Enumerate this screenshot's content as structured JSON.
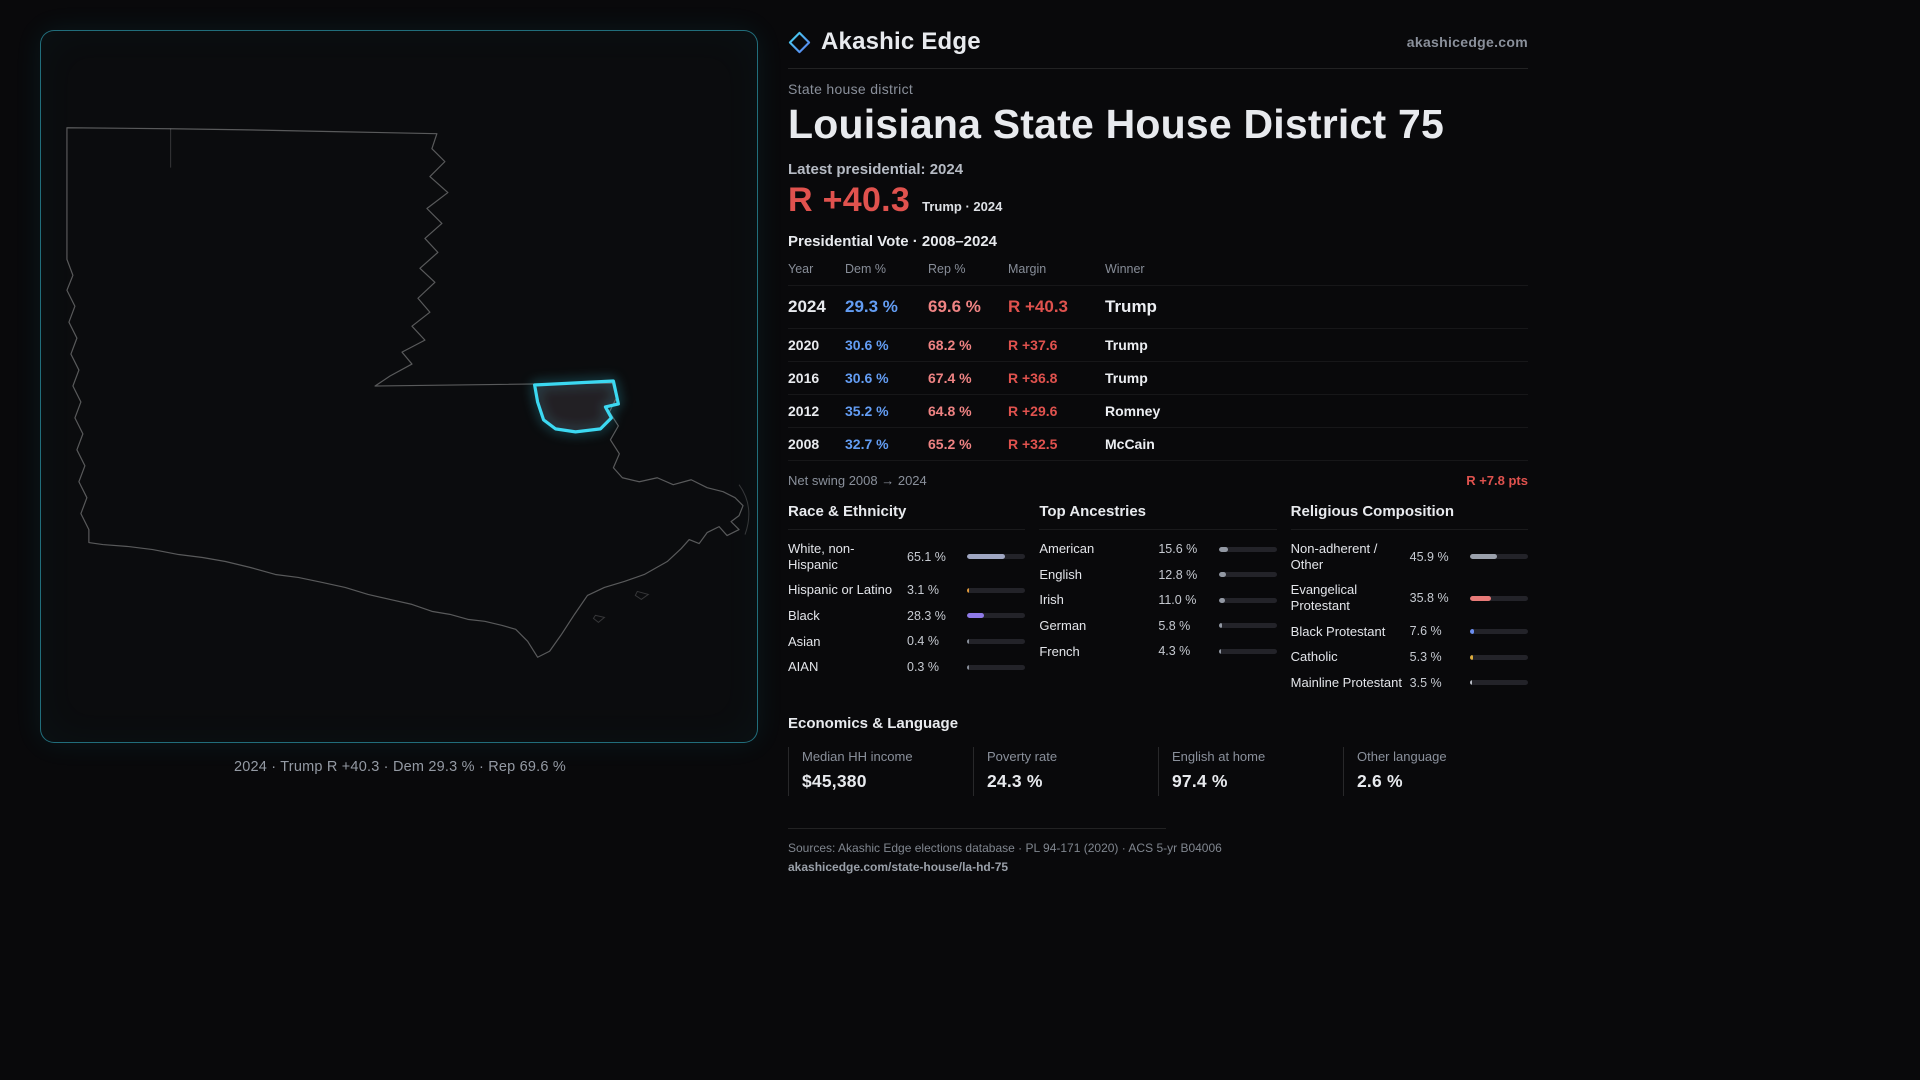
{
  "brand": {
    "name": "Akashic Edge",
    "domain": "akashicedge.com",
    "logo_icon": "diamond-icon",
    "accent_color": "#38d0ee"
  },
  "map": {
    "caption": "2024 · Trump R +40.3 · Dem 29.3 % · Rep 69.6 %",
    "district_color": "#3cd9f2"
  },
  "header": {
    "kicker": "State house district",
    "title": "Louisiana State House District 75",
    "latest_label": "Latest presidential: 2024",
    "margin_value": "R +40.3",
    "margin_context": "Trump · 2024",
    "margin_color": "#e0524e"
  },
  "vote_table": {
    "title": "Presidential Vote · 2008–2024",
    "columns": {
      "year": "Year",
      "dem": "Dem %",
      "rep": "Rep %",
      "margin": "Margin",
      "winner": "Winner"
    },
    "dem_color": "#639df4",
    "rep_color": "#ef8383",
    "rows": [
      {
        "year": "2024",
        "dem": "29.3 %",
        "rep": "69.6 %",
        "margin": "R +40.3",
        "winner": "Trump"
      },
      {
        "year": "2020",
        "dem": "30.6 %",
        "rep": "68.2 %",
        "margin": "R +37.6",
        "winner": "Trump"
      },
      {
        "year": "2016",
        "dem": "30.6 %",
        "rep": "67.4 %",
        "margin": "R +36.8",
        "winner": "Trump"
      },
      {
        "year": "2012",
        "dem": "35.2 %",
        "rep": "64.8 %",
        "margin": "R +29.6",
        "winner": "Romney"
      },
      {
        "year": "2008",
        "dem": "32.7 %",
        "rep": "65.2 %",
        "margin": "R +32.5",
        "winner": "McCain"
      }
    ],
    "net_swing_label": "Net swing 2008 → 2024",
    "net_swing_value": "R +7.8 pts"
  },
  "demographics": {
    "race": {
      "title": "Race & Ethnicity",
      "items": [
        {
          "label": "White, non-Hispanic",
          "value": "65.1 %",
          "pct": 65.1,
          "color": "#9fa6c2"
        },
        {
          "label": "Hispanic or Latino",
          "value": "3.1 %",
          "pct": 3.1,
          "color": "#e39b3b"
        },
        {
          "label": "Black",
          "value": "28.3 %",
          "pct": 28.3,
          "color": "#8f7ae8"
        },
        {
          "label": "Asian",
          "value": "0.4 %",
          "pct": 0.4,
          "color": "#8a909b"
        },
        {
          "label": "AIAN",
          "value": "0.3 %",
          "pct": 0.3,
          "color": "#8a909b"
        }
      ]
    },
    "ancestries": {
      "title": "Top Ancestries",
      "items": [
        {
          "label": "American",
          "value": "15.6 %",
          "pct": 15.6,
          "color": "#9298a3"
        },
        {
          "label": "English",
          "value": "12.8 %",
          "pct": 12.8,
          "color": "#9298a3"
        },
        {
          "label": "Irish",
          "value": "11.0 %",
          "pct": 11.0,
          "color": "#9298a3"
        },
        {
          "label": "German",
          "value": "5.8 %",
          "pct": 5.8,
          "color": "#9298a3"
        },
        {
          "label": "French",
          "value": "4.3 %",
          "pct": 4.3,
          "color": "#9298a3"
        }
      ]
    },
    "religion": {
      "title": "Religious Composition",
      "items": [
        {
          "label": "Non-adherent / Other",
          "value": "45.9 %",
          "pct": 45.9,
          "color": "#9aa0ab"
        },
        {
          "label": "Evangelical Protestant",
          "value": "35.8 %",
          "pct": 35.8,
          "color": "#e87a78"
        },
        {
          "label": "Black Protestant",
          "value": "7.6 %",
          "pct": 7.6,
          "color": "#6b8ef0"
        },
        {
          "label": "Catholic",
          "value": "5.3 %",
          "pct": 5.3,
          "color": "#ddad3e"
        },
        {
          "label": "Mainline Protestant",
          "value": "3.5 %",
          "pct": 3.5,
          "color": "#b9bdc6"
        }
      ]
    }
  },
  "economics": {
    "title": "Economics & Language",
    "stats": [
      {
        "label": "Median HH income",
        "value": "$45,380"
      },
      {
        "label": "Poverty rate",
        "value": "24.3 %"
      },
      {
        "label": "English at home",
        "value": "97.4 %"
      },
      {
        "label": "Other language",
        "value": "2.6 %"
      }
    ]
  },
  "footer": {
    "sources": "Sources: Akashic Edge elections database · PL 94-171 (2020) · ACS 5-yr B04006",
    "permalink": "akashicedge.com/state-house/la-hd-75"
  }
}
